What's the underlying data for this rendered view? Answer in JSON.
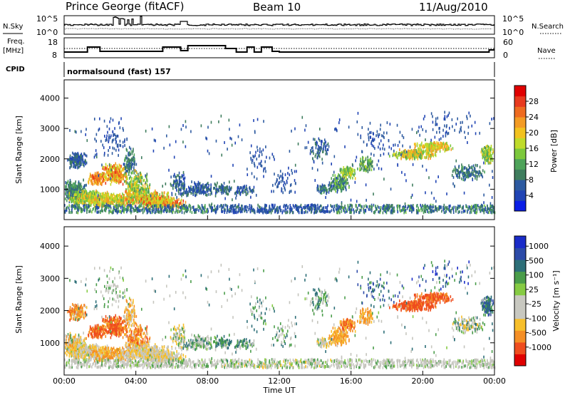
{
  "header": {
    "station": "Prince George (fitACF)",
    "beam": "Beam 10",
    "date": "11/Aug/2010"
  },
  "labels": {
    "nsky": "N.Sky",
    "freq_line1": "Freq.",
    "freq_line2": "[MHz]",
    "cpid": "CPID",
    "nsearch": "N.Search",
    "nave": "Nave",
    "mode": "normalsound (fast) 157",
    "xlabel": "Time UT",
    "ylabel_range": "Slant Range [km]",
    "power_label": "Power [dB]",
    "velocity_label": "Velocity [m s⁻¹]"
  },
  "noise_axis": {
    "top": "10^5",
    "bottom": "10^0"
  },
  "freq_axis": {
    "left_top": "18",
    "left_bottom": "8",
    "right_top": "60",
    "right_bottom": "0"
  },
  "colors": {
    "power_scale": [
      "#0a1ee6",
      "#2044b4",
      "#2d5aa0",
      "#3f7d5e",
      "#4ea35a",
      "#7cc83c",
      "#bfdb2b",
      "#f2c21f",
      "#f39b24",
      "#ee6b20",
      "#e83a1e",
      "#e00000"
    ],
    "velocity_scale": [
      "#e00000",
      "#ef4d1e",
      "#f58f25",
      "#f7bf2b",
      "#c8c8c0",
      "#c8c8c0",
      "#86cb43",
      "#4a9d4a",
      "#2d6f78",
      "#2c4ba8",
      "#1a2cc8"
    ],
    "ground": "#c4c4bd"
  },
  "chart_data": [
    {
      "type": "line",
      "title": "N.Sky / N.Search",
      "x": [
        "00:00",
        "04:00",
        "08:00",
        "12:00",
        "16:00",
        "20:00",
        "00:00"
      ],
      "ylim": [
        "10^0",
        "10^5"
      ]
    },
    {
      "type": "line",
      "title": "Freq. [MHz] / Nave",
      "x": [
        "00:00",
        "04:00",
        "08:00",
        "12:00",
        "16:00",
        "20:00",
        "00:00"
      ],
      "ylim_left": [
        8,
        18
      ],
      "ylim_right": [
        0,
        60
      ]
    },
    {
      "type": "heatmap",
      "xlabel": "Time UT",
      "ylabel": "Slant Range [km]",
      "x_ticks": [
        "00:00",
        "04:00",
        "08:00",
        "12:00",
        "16:00",
        "20:00",
        "00:00"
      ],
      "y_ticks": [
        1000,
        2000,
        3000,
        4000
      ],
      "colorbar_label": "Power [dB]",
      "colorbar_ticks": [
        4,
        8,
        12,
        16,
        20,
        24,
        28
      ]
    },
    {
      "type": "heatmap",
      "xlabel": "Time UT",
      "ylabel": "Slant Range [km]",
      "x_ticks": [
        "00:00",
        "04:00",
        "08:00",
        "12:00",
        "16:00",
        "20:00",
        "00:00"
      ],
      "y_ticks": [
        1000,
        2000,
        3000,
        4000
      ],
      "colorbar_label": "Velocity [m s⁻¹]",
      "colorbar_ticks": [
        1000,
        500,
        100,
        25,
        -25,
        -100,
        -500,
        -1000
      ]
    }
  ]
}
